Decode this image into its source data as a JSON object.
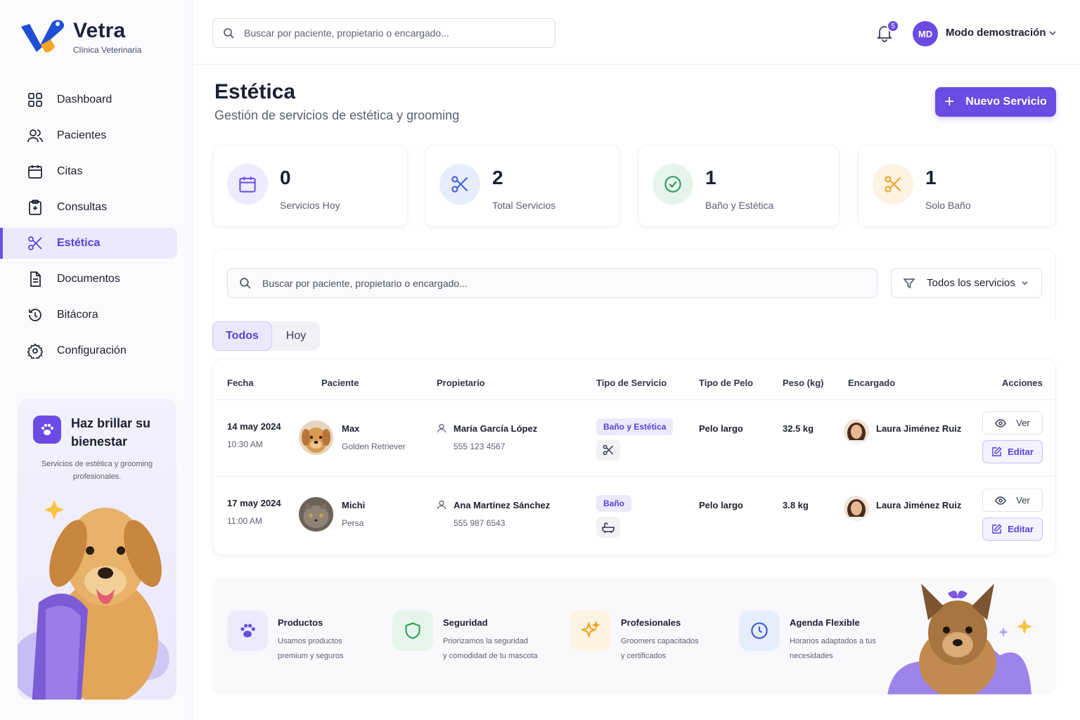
{
  "brand": {
    "name": "Vetra",
    "tagline": "Clínica Veterinaria"
  },
  "sidebar": {
    "items": [
      {
        "label": "Dashboard",
        "icon": "grid-icon"
      },
      {
        "label": "Pacientes",
        "icon": "users-icon"
      },
      {
        "label": "Citas",
        "icon": "calendar-icon"
      },
      {
        "label": "Consultas",
        "icon": "clipboard-icon"
      },
      {
        "label": "Estética",
        "icon": "scissors-icon",
        "active": true
      },
      {
        "label": "Documentos",
        "icon": "document-icon"
      },
      {
        "label": "Bitácora",
        "icon": "history-icon"
      },
      {
        "label": "Configuración",
        "icon": "gear-icon"
      }
    ],
    "promo": {
      "title": "Haz brillar su bienestar",
      "text": "Servicios de estética y grooming profesionales."
    }
  },
  "topbar": {
    "search_placeholder": "Buscar por paciente, propietario o encargado...",
    "notifications_count": "5",
    "user_initials": "MD",
    "user_name": "Modo demostración"
  },
  "header": {
    "title": "Estética",
    "subtitle": "Gestión de servicios de estética y grooming",
    "new_button": "Nuevo Servicio"
  },
  "stats": [
    {
      "value": "0",
      "label": "Servicios Hoy",
      "icon": "calendar-icon",
      "color": "#6a4be3"
    },
    {
      "value": "2",
      "label": "Total Servicios",
      "icon": "scissors-icon",
      "color": "#3b5bdb"
    },
    {
      "value": "1",
      "label": "Baño y Estética",
      "icon": "check-circle-icon",
      "color": "#2f9e5b"
    },
    {
      "value": "1",
      "label": "Solo Baño",
      "icon": "scissors-icon",
      "color": "#f0a020"
    }
  ],
  "filters": {
    "search_placeholder": "Buscar por paciente, propietario o encargado...",
    "service_filter": "Todos los servicios",
    "tabs": [
      "Todos",
      "Hoy"
    ]
  },
  "table": {
    "columns": [
      "Fecha",
      "Paciente",
      "Propietario",
      "Tipo de Servicio",
      "Tipo de Pelo",
      "Peso (kg)",
      "Encargado",
      "Acciones"
    ],
    "rows": [
      {
        "date": "14 may 2024",
        "time": "10:30 AM",
        "patient": "Max",
        "breed": "Golden Retriever",
        "owner": "María García López",
        "phone": "555 123 4567",
        "service": "Baño y Estética",
        "service_icon": "scissors-icon",
        "hair": "Pelo largo",
        "weight": "32.5 kg",
        "staff": "Laura Jiménez Ruiz",
        "view": "Ver",
        "edit": "Editar"
      },
      {
        "date": "17 may 2024",
        "time": "11:00 AM",
        "patient": "Michi",
        "breed": "Persa",
        "owner": "Ana Martínez Sánchez",
        "phone": "555 987 6543",
        "service": "Baño",
        "service_icon": "bathtub-icon",
        "hair": "Pelo largo",
        "weight": "3.8 kg",
        "staff": "Laura Jiménez Ruiz",
        "view": "Ver",
        "edit": "Editar"
      }
    ]
  },
  "features": [
    {
      "title": "Productos",
      "line1": "Usamos productos",
      "line2": "premium y seguros",
      "icon": "paw-icon"
    },
    {
      "title": "Seguridad",
      "line1": "Priorizamos la seguridad",
      "line2": "y comodidad de tu mascota",
      "icon": "shield-icon"
    },
    {
      "title": "Profesionales",
      "line1": "Groomers capacitados",
      "line2": "y certificados",
      "icon": "sparkles-icon"
    },
    {
      "title": "Agenda Flexible",
      "line1": "Horarios adaptados a tus",
      "line2": "necesidades",
      "icon": "clock-icon"
    }
  ],
  "colors": {
    "accent": "#6a4be3",
    "accent_light": "#ebe9fc"
  }
}
